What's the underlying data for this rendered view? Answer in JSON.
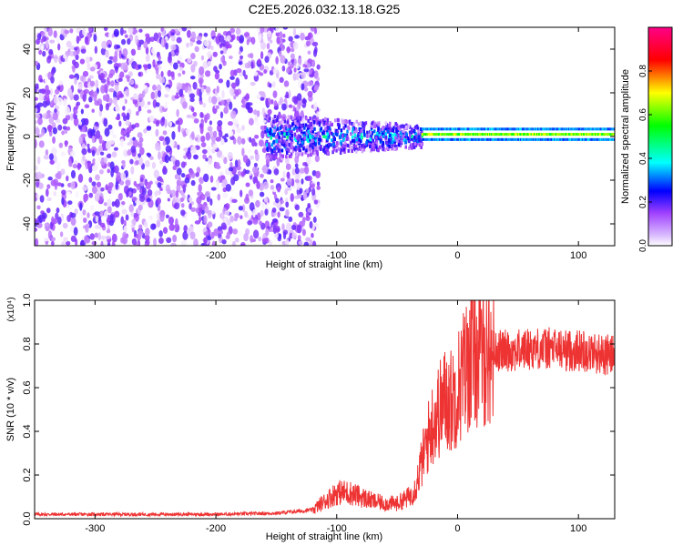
{
  "title": "C2E5.2026.032.13.18.G25",
  "chart_data": [
    {
      "type": "heatmap",
      "xlabel": "Height of straight line (km)",
      "ylabel": "Frequency (Hz)",
      "xlim": [
        -350,
        130
      ],
      "ylim": [
        -50,
        50
      ],
      "xticks": [
        -300,
        -200,
        -100,
        0,
        100
      ],
      "yticks": [
        -40,
        -20,
        0,
        20,
        40
      ],
      "colorbar": {
        "label": "Normalized spectral amplitude",
        "range": [
          0.0,
          1.0
        ],
        "ticks": [
          0.0,
          0.2,
          0.4,
          0.6,
          0.8
        ],
        "tick_labels": [
          "0.0",
          "0.2",
          "0.4",
          "0.6",
          "0.8"
        ],
        "colors": [
          "#ffffff",
          "#a040ff",
          "#0000ff",
          "#00ffff",
          "#00ff00",
          "#ffff00",
          "#ff0000",
          "#ff00aa"
        ]
      },
      "regions": [
        {
          "x_range": [
            -350,
            -130
          ],
          "freq_range": [
            -50,
            50
          ],
          "amplitude": 0.1
        },
        {
          "x_range": [
            -160,
            -30
          ],
          "freq_center": 0,
          "freq_halfwidth": 10,
          "amplitude": 0.35
        },
        {
          "x_range": [
            -30,
            130
          ],
          "freq_center": 1,
          "freq_halfwidth": 3,
          "amplitude": 0.6
        }
      ]
    },
    {
      "type": "line",
      "xlabel": "Height of straight line (km)",
      "ylabel": "SNR (10 * v/v)",
      "y_multiplier": "(x10⁴)",
      "xlim": [
        -350,
        130
      ],
      "ylim": [
        0.0,
        1.0
      ],
      "xticks": [
        -300,
        -200,
        -100,
        0,
        100
      ],
      "yticks": [
        0.0,
        0.2,
        0.4,
        0.6,
        0.8,
        1.0
      ],
      "ytick_labels": [
        "0.0",
        "0.2",
        "0.4",
        "0.6",
        "0.8",
        "1.0"
      ],
      "color": "#ee3333",
      "series": [
        {
          "x": [
            -350,
            -300,
            -250,
            -200,
            -150,
            -120,
            -110,
            -100,
            -90,
            -80,
            -70,
            -60,
            -50,
            -40,
            -35,
            -30,
            -25,
            -20,
            -15,
            -10,
            -5,
            0,
            5,
            10,
            15,
            20,
            25,
            30,
            35,
            40,
            50,
            60,
            70,
            80,
            90,
            100,
            105,
            110,
            115,
            120,
            130
          ],
          "y": [
            0.02,
            0.02,
            0.02,
            0.02,
            0.025,
            0.04,
            0.08,
            0.12,
            0.12,
            0.1,
            0.08,
            0.07,
            0.07,
            0.1,
            0.14,
            0.25,
            0.36,
            0.45,
            0.5,
            0.55,
            0.54,
            0.6,
            0.67,
            0.73,
            0.75,
            0.75,
            0.76,
            0.77,
            0.77,
            0.77,
            0.77,
            0.78,
            0.78,
            0.78,
            0.77,
            0.77,
            0.77,
            0.76,
            0.76,
            0.75,
            0.75
          ]
        }
      ]
    }
  ]
}
